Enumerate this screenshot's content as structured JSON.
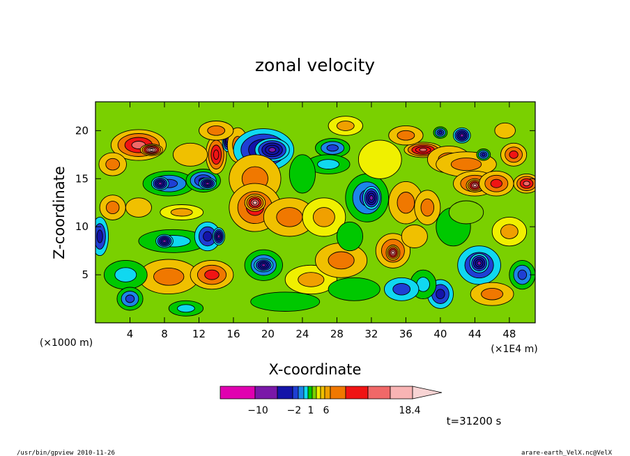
{
  "chart_data": {
    "type": "heatmap",
    "title": "zonal velocity",
    "xlabel": "X-coordinate",
    "ylabel": "Z-coordinate",
    "x_unit_label": "(×1E4 m)",
    "z_unit_label": "(×1000 m)",
    "xlim": [
      0,
      51
    ],
    "zlim": [
      0,
      23
    ],
    "x_ticks": [
      4,
      8,
      12,
      16,
      20,
      24,
      28,
      32,
      36,
      40,
      44,
      48
    ],
    "z_ticks": [
      5,
      10,
      15,
      20
    ],
    "x_tick_labels": [
      "4",
      "8",
      "12",
      "16",
      "20",
      "24",
      "28",
      "32",
      "36",
      "40",
      "44",
      "48"
    ],
    "z_tick_labels": [
      "5",
      "10",
      "15",
      "20"
    ],
    "colorbar": {
      "colors": [
        "#e000b0",
        "#7a18a8",
        "#1414a8",
        "#1f3fd4",
        "#1c86e8",
        "#10d8f0",
        "#00c800",
        "#7ad000",
        "#f0f000",
        "#f0c000",
        "#f0a000",
        "#f07800",
        "#f01414",
        "#f06868",
        "#f8b4b4",
        "#f8d4d4"
      ],
      "labels": [
        {
          "text": "−10",
          "value": -10
        },
        {
          "text": "−2",
          "value": -2
        },
        {
          "text": "1",
          "value": 1
        },
        {
          "text": "6",
          "value": 6
        },
        {
          "text": "18.4",
          "value": 18.4
        }
      ]
    },
    "time_label": "t=31200 s",
    "grid": false,
    "blobs": [
      {
        "x": 5,
        "z": 18.5,
        "rx": 3.2,
        "rz": 1.6,
        "v": 10
      },
      {
        "x": 6.5,
        "z": 18,
        "rx": 1.3,
        "rz": 0.6,
        "v": 15
      },
      {
        "x": 2,
        "z": 16.5,
        "rx": 1.6,
        "rz": 1.2,
        "v": 5
      },
      {
        "x": 8.5,
        "z": 14.5,
        "rx": 3,
        "rz": 1.3,
        "v": -6
      },
      {
        "x": 7.5,
        "z": 14.5,
        "rx": 1,
        "rz": 0.7,
        "v": -12
      },
      {
        "x": 12.5,
        "z": 14.8,
        "rx": 2,
        "rz": 1.2,
        "v": -8
      },
      {
        "x": 13,
        "z": 14.5,
        "rx": 1,
        "rz": 0.6,
        "v": -12
      },
      {
        "x": 14,
        "z": 17.5,
        "rx": 1.2,
        "rz": 2,
        "v": 8
      },
      {
        "x": 15.3,
        "z": 19,
        "rx": 0.6,
        "rz": 1.2,
        "v": -11
      },
      {
        "x": 16.5,
        "z": 18.5,
        "rx": 1.2,
        "rz": 1.8,
        "v": 4
      },
      {
        "x": 11,
        "z": 17.5,
        "rx": 2,
        "rz": 1.2,
        "v": 2
      },
      {
        "x": 19.5,
        "z": 18,
        "rx": 3.5,
        "rz": 2.2,
        "v": -9
      },
      {
        "x": 20.5,
        "z": 18,
        "rx": 2,
        "rz": 1.2,
        "v": -12
      },
      {
        "x": 18.5,
        "z": 15,
        "rx": 3,
        "rz": 2.5,
        "v": 5
      },
      {
        "x": 18.5,
        "z": 12,
        "rx": 3,
        "rz": 2.5,
        "v": 7
      },
      {
        "x": 18.5,
        "z": 12.5,
        "rx": 1.2,
        "rz": 0.9,
        "v": 12
      },
      {
        "x": 22.5,
        "z": 11,
        "rx": 3,
        "rz": 2,
        "v": 4
      },
      {
        "x": 26.5,
        "z": 11,
        "rx": 2.5,
        "rz": 2,
        "v": 3
      },
      {
        "x": 19.5,
        "z": 6,
        "rx": 2.2,
        "rz": 1.6,
        "v": -6
      },
      {
        "x": 19.5,
        "z": 6,
        "rx": 1.1,
        "rz": 0.7,
        "v": -12
      },
      {
        "x": 27.5,
        "z": 18.2,
        "rx": 2,
        "rz": 1,
        "v": -6
      },
      {
        "x": 27,
        "z": 16.5,
        "rx": 2.5,
        "rz": 1,
        "v": -3
      },
      {
        "x": 29,
        "z": 20.5,
        "rx": 2,
        "rz": 1,
        "v": 3
      },
      {
        "x": 31.5,
        "z": 13,
        "rx": 2.5,
        "rz": 2.5,
        "v": -6
      },
      {
        "x": 32,
        "z": 13,
        "rx": 1,
        "rz": 1.2,
        "v": -12
      },
      {
        "x": 34.5,
        "z": 7.5,
        "rx": 2,
        "rz": 1.8,
        "v": 6
      },
      {
        "x": 34.5,
        "z": 7.3,
        "rx": 0.8,
        "rz": 0.8,
        "v": 12
      },
      {
        "x": 38,
        "z": 18,
        "rx": 2.2,
        "rz": 0.8,
        "v": 11
      },
      {
        "x": 41,
        "z": 17,
        "rx": 2.5,
        "rz": 1.4,
        "v": 5
      },
      {
        "x": 43,
        "z": 16.5,
        "rx": 3.5,
        "rz": 1.3,
        "v": 5
      },
      {
        "x": 44,
        "z": 14.5,
        "rx": 2.5,
        "rz": 1.3,
        "v": 7
      },
      {
        "x": 44,
        "z": 14.3,
        "rx": 1,
        "rz": 0.7,
        "v": 12
      },
      {
        "x": 46.5,
        "z": 14.5,
        "rx": 2,
        "rz": 1.3,
        "v": 6
      },
      {
        "x": 50,
        "z": 14.5,
        "rx": 1.5,
        "rz": 1,
        "v": 10
      },
      {
        "x": 42.5,
        "z": 19.5,
        "rx": 1,
        "rz": 0.8,
        "v": -11
      },
      {
        "x": 40,
        "z": 19.8,
        "rx": 0.8,
        "rz": 0.6,
        "v": -8
      },
      {
        "x": 45,
        "z": 17.5,
        "rx": 0.8,
        "rz": 0.6,
        "v": -8
      },
      {
        "x": 41.5,
        "z": 10,
        "rx": 2,
        "rz": 2,
        "v": -2
      },
      {
        "x": 44.5,
        "z": 6,
        "rx": 2.5,
        "rz": 2,
        "v": -7
      },
      {
        "x": 44.5,
        "z": 6.2,
        "rx": 1.1,
        "rz": 1,
        "v": -12
      },
      {
        "x": 49.5,
        "z": 5,
        "rx": 1.5,
        "rz": 1.5,
        "v": -6
      },
      {
        "x": 40,
        "z": 3,
        "rx": 1.5,
        "rz": 1.5,
        "v": -7
      },
      {
        "x": 38,
        "z": 4,
        "rx": 1.5,
        "rz": 1.5,
        "v": -3
      },
      {
        "x": 46,
        "z": 3,
        "rx": 2.5,
        "rz": 1.2,
        "v": 4
      },
      {
        "x": 36,
        "z": 12.5,
        "rx": 2,
        "rz": 2.2,
        "v": 4
      },
      {
        "x": 38.5,
        "z": 12,
        "rx": 1.5,
        "rz": 1.8,
        "v": 5
      },
      {
        "x": 9,
        "z": 8.5,
        "rx": 4,
        "rz": 1.2,
        "v": -3
      },
      {
        "x": 8,
        "z": 8.5,
        "rx": 1,
        "rz": 0.7,
        "v": -11
      },
      {
        "x": 13,
        "z": 9,
        "rx": 1.5,
        "rz": 1.5,
        "v": -7
      },
      {
        "x": 14.3,
        "z": 9,
        "rx": 0.7,
        "rz": 0.9,
        "v": -11
      },
      {
        "x": 8.5,
        "z": 4.8,
        "rx": 3.5,
        "rz": 1.8,
        "v": 5
      },
      {
        "x": 13.5,
        "z": 5,
        "rx": 2.5,
        "rz": 1.5,
        "v": 6
      },
      {
        "x": 3.5,
        "z": 5,
        "rx": 2.5,
        "rz": 1.5,
        "v": -3
      },
      {
        "x": 4,
        "z": 2.5,
        "rx": 1.5,
        "rz": 1.2,
        "v": -6
      },
      {
        "x": 10.5,
        "z": 1.5,
        "rx": 2,
        "rz": 0.8,
        "v": -3
      },
      {
        "x": 25,
        "z": 4.5,
        "rx": 3,
        "rz": 1.5,
        "v": 3
      },
      {
        "x": 28.5,
        "z": 6.5,
        "rx": 3,
        "rz": 1.8,
        "v": 4
      },
      {
        "x": 30,
        "z": 3.5,
        "rx": 3,
        "rz": 1.2,
        "v": -2
      },
      {
        "x": 35.5,
        "z": 3.5,
        "rx": 2,
        "rz": 1.2,
        "v": -5
      },
      {
        "x": 22,
        "z": 2.2,
        "rx": 4,
        "rz": 1,
        "v": -2
      },
      {
        "x": 14,
        "z": 20,
        "rx": 2,
        "rz": 1,
        "v": 4
      },
      {
        "x": 33,
        "z": 17,
        "rx": 2.5,
        "rz": 2,
        "v": 1
      },
      {
        "x": 36,
        "z": 19.5,
        "rx": 2,
        "rz": 1,
        "v": 4
      },
      {
        "x": 48.5,
        "z": 17.5,
        "rx": 1.5,
        "rz": 1.2,
        "v": 6
      },
      {
        "x": 47.5,
        "z": 20,
        "rx": 1.2,
        "rz": 0.8,
        "v": 2
      },
      {
        "x": 48,
        "z": 9.5,
        "rx": 2,
        "rz": 1.5,
        "v": 3
      },
      {
        "x": 0.5,
        "z": 9,
        "rx": 1,
        "rz": 2,
        "v": -7
      },
      {
        "x": 2,
        "z": 12,
        "rx": 1.5,
        "rz": 1.3,
        "v": 4
      },
      {
        "x": 5,
        "z": 12,
        "rx": 1.5,
        "rz": 1,
        "v": 2
      },
      {
        "x": 10,
        "z": 11.5,
        "rx": 2.5,
        "rz": 0.8,
        "v": 3
      },
      {
        "x": 29.5,
        "z": 9,
        "rx": 1.5,
        "rz": 1.5,
        "v": -2
      },
      {
        "x": 24,
        "z": 15.5,
        "rx": 1.5,
        "rz": 2,
        "v": -2
      },
      {
        "x": 37,
        "z": 9,
        "rx": 1.5,
        "rz": 1.2,
        "v": 2
      },
      {
        "x": 43,
        "z": 11.5,
        "rx": 2,
        "rz": 1.2,
        "v": -1
      }
    ]
  },
  "footer": {
    "left": "/usr/bin/gpview  2010-11-26",
    "right": "arare-earth_VelX.nc@VelX"
  }
}
